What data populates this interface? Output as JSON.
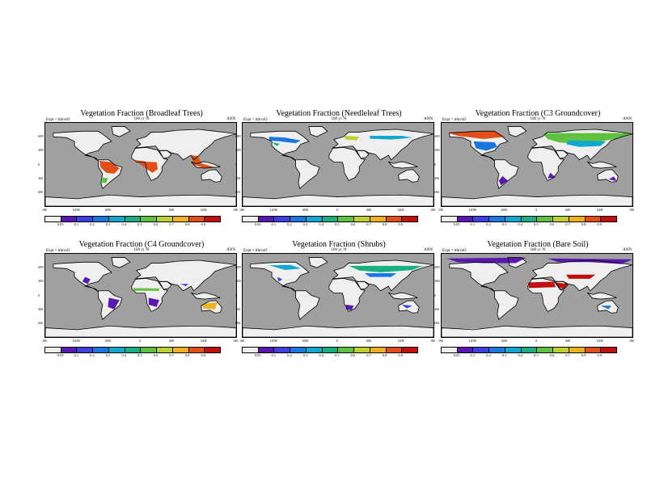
{
  "figure": {
    "expt_label": "Expt = ithrcsO",
    "subtitle": "100 yr ?0",
    "season": "ANN",
    "lat_labels": [
      "60N",
      "30N",
      "0",
      "30S",
      "60S"
    ],
    "lon_labels": [
      "180",
      "120W",
      "60W",
      "0",
      "60E",
      "120E",
      "180"
    ],
    "colorbar": {
      "colors": [
        "#f0f0f0",
        "#5a18b0",
        "#4040e0",
        "#1878e0",
        "#10a8d0",
        "#18b080",
        "#60c040",
        "#c0d030",
        "#f0b020",
        "#e05018",
        "#c01010"
      ],
      "labels": [
        "0.05",
        "0.1",
        "0.2",
        "0.3",
        "0.4",
        "0.5",
        "0.6",
        "0.7",
        "0.8",
        "0.9"
      ]
    },
    "legend_colors": {
      "ocean": "#a0a0a0",
      "land_zero": "#efefef",
      "coast": "#000000"
    }
  },
  "panels": [
    {
      "title": "Vegetation Fraction (Broadleaf Trees)",
      "variable": "broadleaf-trees",
      "high_regions": [
        "Amazon",
        "Congo",
        "Southeast Asia"
      ]
    },
    {
      "title": "Vegetation Fraction (Needleleaf Trees)",
      "variable": "needleleaf-trees",
      "high_regions": [
        "Boreal North America",
        "Boreal Eurasia"
      ]
    },
    {
      "title": "Vegetation Fraction (C3 Groundcover)",
      "variable": "c3-groundcover",
      "high_regions": [
        "Northern Eurasia",
        "North America"
      ]
    },
    {
      "title": "Vegetation Fraction (C4 Groundcover)",
      "variable": "c4-groundcover",
      "high_regions": [
        "Sahel",
        "South America",
        "Australia"
      ]
    },
    {
      "title": "Vegetation Fraction (Shrubs)",
      "variable": "shrubs",
      "high_regions": [
        "Central Asia",
        "Southern Africa"
      ]
    },
    {
      "title": "Vegetation Fraction (Bare Soil)",
      "variable": "bare-soil",
      "high_regions": [
        "Sahara",
        "Arabia",
        "Central Asia"
      ]
    }
  ]
}
